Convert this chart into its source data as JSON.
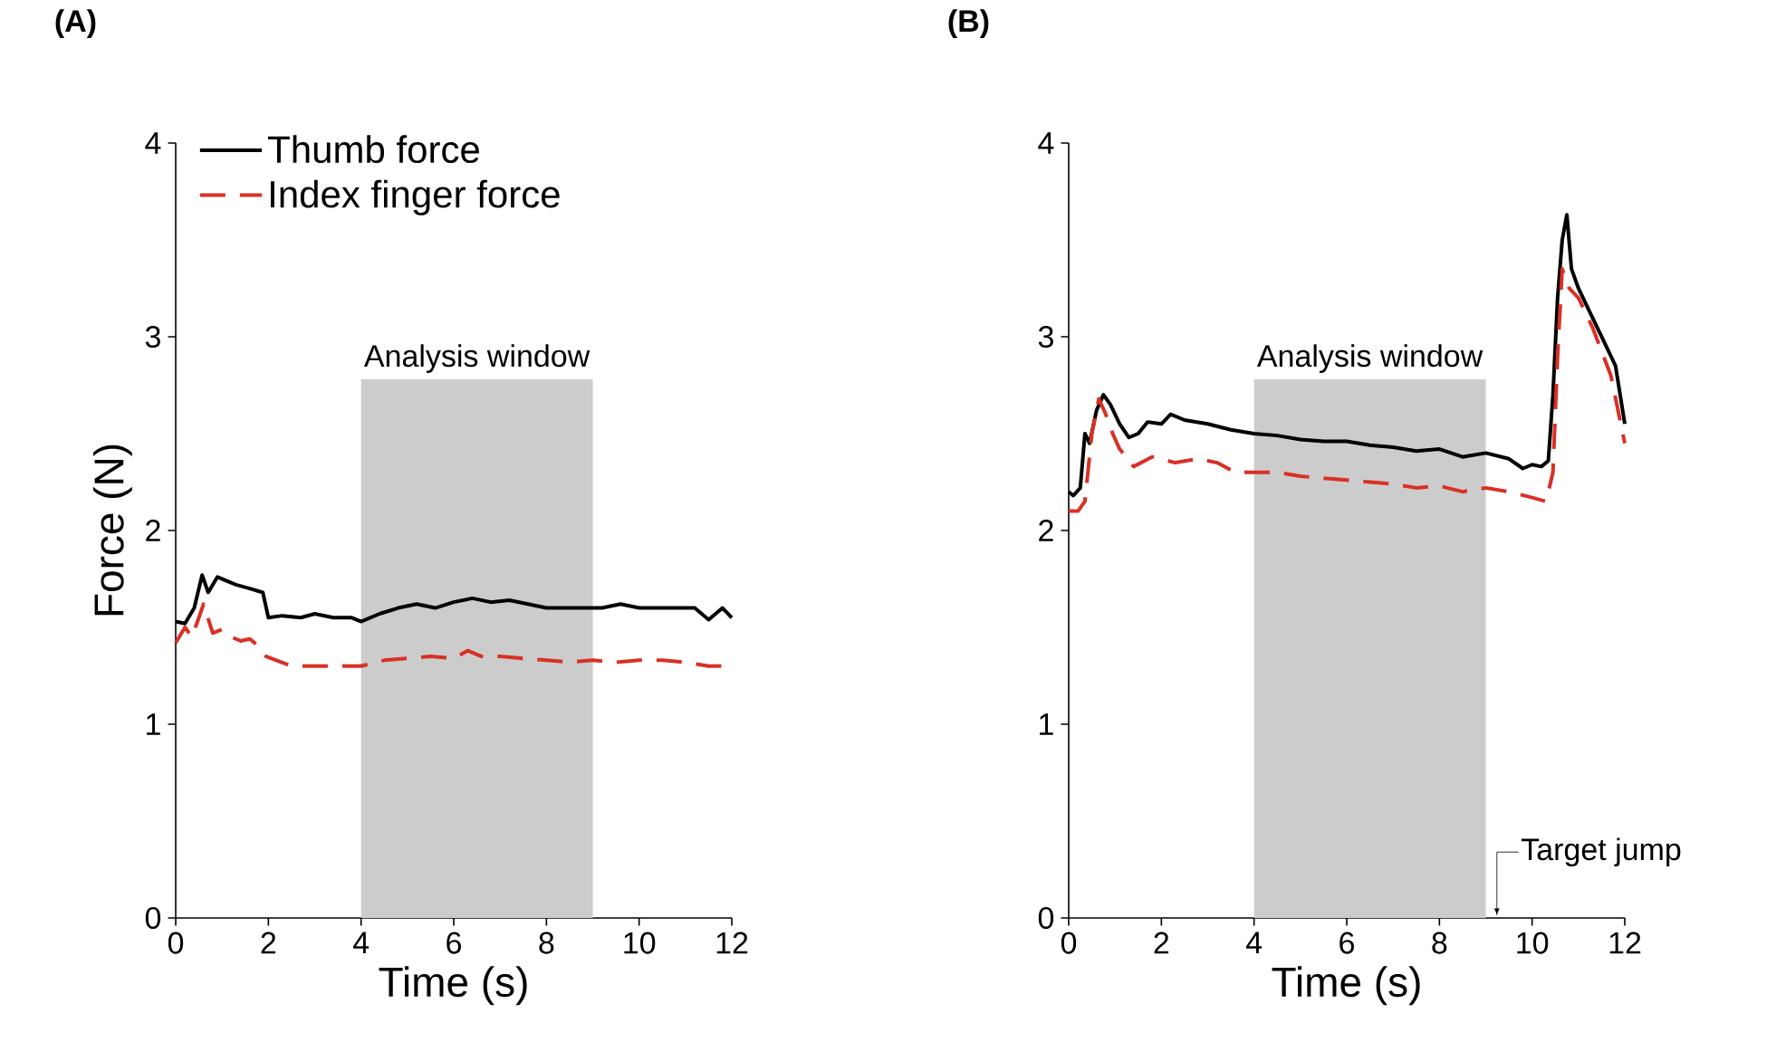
{
  "chart_data": [
    {
      "type": "line",
      "title": "(A)",
      "xlabel": "Time (s)",
      "ylabel": "Force (N)",
      "xlim": [
        0,
        12
      ],
      "ylim": [
        0,
        4
      ],
      "xticks": [
        0,
        2,
        4,
        6,
        8,
        10,
        12
      ],
      "yticks": [
        0,
        1,
        2,
        3,
        4
      ],
      "legend": "top left",
      "bands": [
        {
          "axis": "x",
          "from": 4,
          "to": 9,
          "label": "Analysis window",
          "color": "#cccccc"
        }
      ],
      "series": [
        {
          "name": "Thumb force",
          "color": "#000000",
          "line_style": "solid",
          "x": [
            0,
            0.2,
            0.4,
            0.57,
            0.7,
            0.9,
            1.1,
            1.3,
            1.6,
            1.88,
            2.0,
            2.3,
            2.7,
            3.0,
            3.4,
            3.8,
            4.0,
            4.4,
            4.8,
            5.2,
            5.6,
            6.0,
            6.4,
            6.8,
            7.2,
            7.6,
            8.0,
            8.4,
            8.8,
            9.2,
            9.6,
            10.0,
            10.4,
            10.8,
            11.2,
            11.5,
            11.8,
            12.0
          ],
          "values": [
            1.53,
            1.52,
            1.6,
            1.77,
            1.68,
            1.76,
            1.74,
            1.72,
            1.7,
            1.68,
            1.55,
            1.56,
            1.55,
            1.57,
            1.55,
            1.55,
            1.53,
            1.57,
            1.6,
            1.62,
            1.6,
            1.63,
            1.65,
            1.63,
            1.64,
            1.62,
            1.6,
            1.6,
            1.6,
            1.6,
            1.62,
            1.6,
            1.6,
            1.6,
            1.6,
            1.54,
            1.6,
            1.55
          ]
        },
        {
          "name": "Index finger force",
          "color": "#d93025",
          "line_style": "dashed",
          "x": [
            0,
            0.2,
            0.35,
            0.5,
            0.6,
            0.8,
            1.0,
            1.2,
            1.4,
            1.6,
            1.8,
            1.95,
            2.5,
            3.0,
            3.5,
            4.0,
            4.5,
            5.0,
            5.5,
            6.0,
            6.3,
            6.6,
            7.0,
            7.5,
            8.0,
            8.5,
            9.0,
            9.5,
            10.0,
            10.5,
            11.0,
            11.5,
            12.0
          ],
          "values": [
            1.42,
            1.5,
            1.45,
            1.55,
            1.62,
            1.47,
            1.49,
            1.45,
            1.43,
            1.44,
            1.4,
            1.35,
            1.3,
            1.3,
            1.3,
            1.3,
            1.33,
            1.34,
            1.35,
            1.34,
            1.38,
            1.35,
            1.35,
            1.34,
            1.33,
            1.32,
            1.33,
            1.32,
            1.33,
            1.33,
            1.32,
            1.3,
            1.3
          ]
        }
      ]
    },
    {
      "type": "line",
      "title": "(B)",
      "xlabel": "Time (s)",
      "xlim": [
        0,
        12
      ],
      "ylim": [
        0,
        4
      ],
      "xticks": [
        0,
        2,
        4,
        6,
        8,
        10,
        12
      ],
      "yticks": [
        0,
        1,
        2,
        3,
        4
      ],
      "legend": false,
      "bands": [
        {
          "axis": "x",
          "from": 4,
          "to": 9,
          "label": "Analysis window",
          "color": "#cccccc"
        }
      ],
      "annotations": [
        "Target jump"
      ],
      "series": [
        {
          "color": "#000000",
          "line_style": "solid",
          "x": [
            0,
            0.1,
            0.25,
            0.35,
            0.45,
            0.6,
            0.75,
            0.9,
            1.1,
            1.3,
            1.5,
            1.7,
            2.0,
            2.2,
            2.5,
            3.0,
            3.5,
            4.0,
            4.5,
            5.0,
            5.5,
            6.0,
            6.5,
            7.0,
            7.5,
            8.0,
            8.5,
            9.0,
            9.5,
            9.8,
            10.0,
            10.2,
            10.35,
            10.45,
            10.55,
            10.65,
            10.75,
            10.85,
            11.0,
            11.2,
            11.5,
            11.8,
            12.0
          ],
          "values": [
            2.2,
            2.18,
            2.22,
            2.5,
            2.45,
            2.62,
            2.7,
            2.65,
            2.55,
            2.48,
            2.5,
            2.56,
            2.55,
            2.6,
            2.57,
            2.55,
            2.52,
            2.5,
            2.49,
            2.47,
            2.46,
            2.46,
            2.44,
            2.43,
            2.41,
            2.42,
            2.38,
            2.4,
            2.37,
            2.32,
            2.34,
            2.33,
            2.36,
            2.7,
            3.2,
            3.5,
            3.63,
            3.35,
            3.25,
            3.15,
            3.0,
            2.85,
            2.55
          ]
        },
        {
          "color": "#d93025",
          "line_style": "dashed",
          "x": [
            0,
            0.2,
            0.35,
            0.5,
            0.65,
            0.8,
            0.95,
            1.1,
            1.4,
            1.8,
            2.3,
            2.8,
            3.2,
            3.6,
            4.0,
            4.5,
            5.0,
            5.5,
            6.0,
            6.5,
            7.0,
            7.5,
            8.0,
            8.5,
            9.0,
            9.5,
            10.0,
            10.3,
            10.45,
            10.55,
            10.65,
            10.8,
            11.0,
            11.3,
            11.7,
            12.0
          ],
          "values": [
            2.1,
            2.1,
            2.15,
            2.5,
            2.68,
            2.6,
            2.5,
            2.42,
            2.33,
            2.38,
            2.35,
            2.37,
            2.35,
            2.3,
            2.3,
            2.3,
            2.28,
            2.27,
            2.26,
            2.25,
            2.24,
            2.22,
            2.23,
            2.2,
            2.22,
            2.2,
            2.17,
            2.15,
            2.3,
            2.9,
            3.35,
            3.25,
            3.2,
            3.05,
            2.8,
            2.45
          ]
        }
      ]
    }
  ]
}
